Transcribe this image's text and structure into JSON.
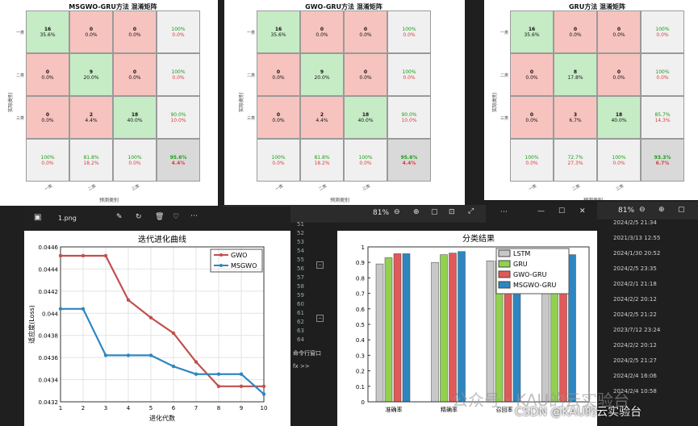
{
  "matrices": [
    {
      "title": "MSGWO-GRU方法 混淆矩阵",
      "row_labels": [
        "一类",
        "二类",
        "三类"
      ],
      "col_labels": [
        "一类",
        "二类",
        "三类"
      ],
      "ylabel": "实际类别",
      "xlabel": "预测类别",
      "cells": [
        [
          [
            "16",
            "35.6%"
          ],
          [
            "0",
            "0.0%"
          ],
          [
            "0",
            "0.0%"
          ]
        ],
        [
          [
            "0",
            "0.0%"
          ],
          [
            "9",
            "20.0%"
          ],
          [
            "0",
            "0.0%"
          ]
        ],
        [
          [
            "0",
            "0.0%"
          ],
          [
            "2",
            "4.4%"
          ],
          [
            "18",
            "40.0%"
          ]
        ]
      ],
      "row_summary": [
        [
          "100%",
          "0.0%"
        ],
        [
          "100%",
          "0.0%"
        ],
        [
          "90.0%",
          "10.0%"
        ]
      ],
      "col_summary": [
        [
          "100%",
          "0.0%"
        ],
        [
          "81.8%",
          "18.2%"
        ],
        [
          "100%",
          "0.0%"
        ]
      ],
      "total": [
        "95.6%",
        "4.4%"
      ]
    },
    {
      "title": "GWO-GRU方法 混淆矩阵",
      "row_labels": [
        "一类",
        "二类",
        "三类"
      ],
      "col_labels": [
        "一类",
        "二类",
        "三类"
      ],
      "ylabel": "实际类别",
      "xlabel": "预测类别",
      "cells": [
        [
          [
            "16",
            "35.6%"
          ],
          [
            "0",
            "0.0%"
          ],
          [
            "0",
            "0.0%"
          ]
        ],
        [
          [
            "0",
            "0.0%"
          ],
          [
            "9",
            "20.0%"
          ],
          [
            "0",
            "0.0%"
          ]
        ],
        [
          [
            "0",
            "0.0%"
          ],
          [
            "2",
            "4.4%"
          ],
          [
            "18",
            "40.0%"
          ]
        ]
      ],
      "row_summary": [
        [
          "100%",
          "0.0%"
        ],
        [
          "100%",
          "0.0%"
        ],
        [
          "90.0%",
          "10.0%"
        ]
      ],
      "col_summary": [
        [
          "100%",
          "0.0%"
        ],
        [
          "81.8%",
          "18.2%"
        ],
        [
          "100%",
          "0.0%"
        ]
      ],
      "total": [
        "95.6%",
        "4.4%"
      ]
    },
    {
      "title": "GRU方法 混淆矩阵",
      "row_labels": [
        "一类",
        "二类",
        "三类"
      ],
      "col_labels": [
        "一类",
        "二类",
        "三类"
      ],
      "ylabel": "实际类别",
      "xlabel": "预测类别",
      "cells": [
        [
          [
            "16",
            "35.6%"
          ],
          [
            "0",
            "0.0%"
          ],
          [
            "0",
            "0.0%"
          ]
        ],
        [
          [
            "0",
            "0.0%"
          ],
          [
            "8",
            "17.8%"
          ],
          [
            "0",
            "0.0%"
          ]
        ],
        [
          [
            "0",
            "0.0%"
          ],
          [
            "3",
            "6.7%"
          ],
          [
            "18",
            "40.0%"
          ]
        ]
      ],
      "row_summary": [
        [
          "100%",
          "0.0%"
        ],
        [
          "100%",
          "0.0%"
        ],
        [
          "85.7%",
          "14.3%"
        ]
      ],
      "col_summary": [
        [
          "100%",
          "0.0%"
        ],
        [
          "72.7%",
          "27.3%"
        ],
        [
          "100%",
          "0.0%"
        ]
      ],
      "total": [
        "93.3%",
        "6.7%"
      ]
    }
  ],
  "photo_viewer": {
    "filename": "1.png",
    "zoom": "81%",
    "zoom_right": "81%"
  },
  "code_editor": {
    "line_numbers": [
      "51",
      "52",
      "53",
      "54",
      "55",
      "56",
      "57",
      "58",
      "59",
      "60",
      "61",
      "62",
      "63",
      "64"
    ],
    "command_window_title": "命令行窗口",
    "prompt": "fx >>"
  },
  "file_dates": [
    "2024/2/5 21:34",
    "2021/3/13 12:55",
    "2024/1/30 20:52",
    "2024/2/5 23:35",
    "2024/2/1 21:18",
    "2024/2/2 20:12",
    "2024/2/5 21:22",
    "2023/7/12 23:24",
    "2024/2/2 20:12",
    "2024/2/5 21:27",
    "2024/2/4 16:06",
    "2024/2/4 10:58"
  ],
  "watermark": "公众号 · KAU的云实验台",
  "csdn": "CSDN @KAU的云实验台",
  "chart_data": [
    {
      "type": "line",
      "title": "迭代进化曲线",
      "xlabel": "进化代数",
      "ylabel": "适应度(Loss)",
      "x": [
        1,
        2,
        3,
        4,
        5,
        6,
        7,
        8,
        9,
        10
      ],
      "xlim": [
        1,
        10
      ],
      "ylim": [
        0.0432,
        0.0446
      ],
      "yticks": [
        "0.0432",
        "0.0434",
        "0.0436",
        "0.0438",
        "0.044",
        "0.0442",
        "0.0444",
        "0.0446"
      ],
      "xticks": [
        "1",
        "2",
        "3",
        "4",
        "5",
        "6",
        "7",
        "8",
        "9",
        "10"
      ],
      "series": [
        {
          "name": "GWO",
          "color": "#c0504d",
          "values": [
            0.04452,
            0.04452,
            0.04452,
            0.04412,
            0.04396,
            0.04382,
            0.04356,
            0.04334,
            0.04334,
            0.04334
          ]
        },
        {
          "name": "MSGWO",
          "color": "#2e86c1",
          "values": [
            0.04404,
            0.04404,
            0.04362,
            0.04362,
            0.04362,
            0.04352,
            0.04345,
            0.04345,
            0.04345,
            0.04327
          ]
        }
      ],
      "legend": "top-right"
    },
    {
      "type": "bar",
      "title": "分类结果",
      "categories": [
        "准确率",
        "精确率",
        "召回率",
        ""
      ],
      "ylim": [
        0,
        1
      ],
      "yticks": [
        "0",
        "0.1",
        "0.2",
        "0.3",
        "0.4",
        "0.5",
        "0.6",
        "0.7",
        "0.8",
        "0.9",
        "1"
      ],
      "series": [
        {
          "name": "LSTM",
          "color": "#c8c8c8",
          "values": [
            0.89,
            0.9,
            0.91,
            0.9
          ]
        },
        {
          "name": "GRU",
          "color": "#92d050",
          "values": [
            0.93,
            0.95,
            0.91,
            0.93
          ]
        },
        {
          "name": "GWO-GRU",
          "color": "#e05a5a",
          "values": [
            0.956,
            0.96,
            0.94,
            0.95
          ]
        },
        {
          "name": "MSGWO-GRU",
          "color": "#2e86c1",
          "values": [
            0.956,
            0.97,
            0.97,
            0.95
          ]
        }
      ],
      "legend": "top-right"
    }
  ]
}
